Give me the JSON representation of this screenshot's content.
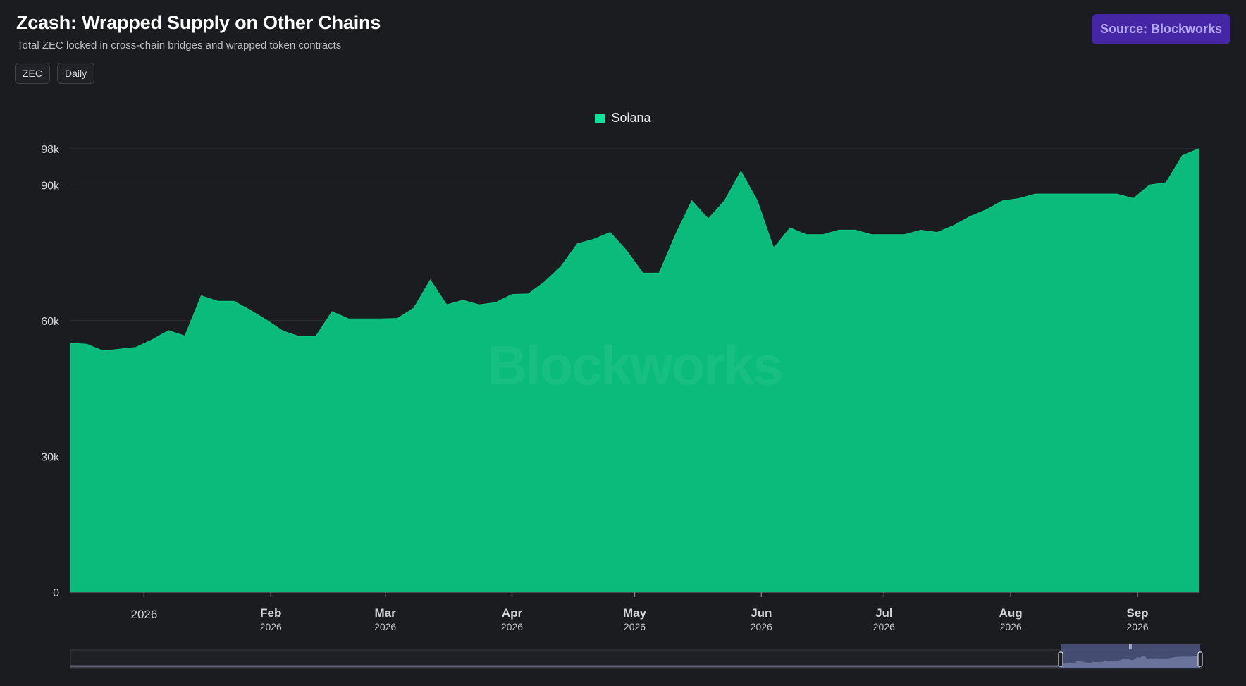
{
  "header": {
    "title": "Zcash: Wrapped Supply on Other Chains",
    "subtitle": "Total ZEC locked in cross-chain bridges and wrapped token contracts",
    "chips": [
      "ZEC",
      "Daily"
    ],
    "source_label": "Source: Blockworks"
  },
  "watermark": "Blockworks",
  "colors": {
    "series": "#0abb7b",
    "legend_swatch": "#0fe39a",
    "background": "#1b1c20",
    "source_button": "#4526a5"
  },
  "chart_data": {
    "type": "area",
    "series": [
      {
        "name": "Solana",
        "x": [
          "2025-12-14",
          "2025-12-18",
          "2025-12-22",
          "2025-12-26",
          "2025-12-30",
          "2026-01-03",
          "2026-01-07",
          "2026-01-11",
          "2026-01-15",
          "2026-01-19",
          "2026-01-23",
          "2026-01-27",
          "2026-01-31",
          "2026-02-04",
          "2026-02-08",
          "2026-02-12",
          "2026-02-16",
          "2026-02-20",
          "2026-02-24",
          "2026-02-28",
          "2026-03-04",
          "2026-03-08",
          "2026-03-12",
          "2026-03-16",
          "2026-03-20",
          "2026-03-24",
          "2026-03-28",
          "2026-04-01",
          "2026-04-05",
          "2026-04-09",
          "2026-04-13",
          "2026-04-17",
          "2026-04-21",
          "2026-04-25",
          "2026-04-29",
          "2026-05-03",
          "2026-05-07",
          "2026-05-11",
          "2026-05-15",
          "2026-05-19",
          "2026-05-23",
          "2026-05-27",
          "2026-05-31",
          "2026-06-04",
          "2026-06-08",
          "2026-06-12",
          "2026-06-16",
          "2026-06-20",
          "2026-06-24",
          "2026-06-28",
          "2026-07-02",
          "2026-07-06",
          "2026-07-10",
          "2026-07-14",
          "2026-07-18",
          "2026-07-22",
          "2026-07-26",
          "2026-07-30",
          "2026-08-03",
          "2026-08-07",
          "2026-08-11",
          "2026-08-15",
          "2026-08-19",
          "2026-08-23",
          "2026-08-27",
          "2026-08-31",
          "2026-09-04",
          "2026-09-08",
          "2026-09-12",
          "2026-09-16"
        ],
        "values": [
          55000,
          54800,
          53300,
          53700,
          54100,
          55800,
          57800,
          56600,
          65500,
          64300,
          64300,
          62300,
          60100,
          57700,
          56500,
          56500,
          62000,
          60400,
          60400,
          60400,
          60500,
          62800,
          69000,
          63500,
          64500,
          63500,
          64000,
          65800,
          65900,
          68600,
          72000,
          77000,
          78000,
          79500,
          75500,
          70500,
          70500,
          79000,
          86500,
          82500,
          86500,
          93000,
          86500,
          76000,
          80500,
          79000,
          79000,
          80000,
          80000,
          79000,
          79000,
          79000,
          80000,
          79500,
          81000,
          83000,
          84500,
          86500,
          87000,
          88000,
          88000,
          88000,
          88000,
          88000,
          88000,
          87000,
          90000,
          90500,
          96500,
          98000
        ]
      }
    ],
    "legend": [
      "Solana"
    ],
    "legend_position": "top-center",
    "ylim": [
      0,
      98000
    ],
    "y_ticks": [
      0,
      30000,
      60000,
      90000,
      98000
    ],
    "y_tick_labels": [
      "0",
      "30k",
      "60k",
      "90k",
      "98k"
    ],
    "x_ticks": [
      {
        "date": "2026-01-01",
        "label": "2026",
        "year": ""
      },
      {
        "date": "2026-02-01",
        "label": "Feb",
        "year": "2026"
      },
      {
        "date": "2026-03-01",
        "label": "Mar",
        "year": "2026"
      },
      {
        "date": "2026-04-01",
        "label": "Apr",
        "year": "2026"
      },
      {
        "date": "2026-05-01",
        "label": "May",
        "year": "2026"
      },
      {
        "date": "2026-06-01",
        "label": "Jun",
        "year": "2026"
      },
      {
        "date": "2026-07-01",
        "label": "Jul",
        "year": "2026"
      },
      {
        "date": "2026-08-01",
        "label": "Aug",
        "year": "2026"
      },
      {
        "date": "2026-09-01",
        "label": "Sep",
        "year": "2026"
      }
    ],
    "grid": true,
    "title": "",
    "xlabel": "",
    "ylabel": ""
  },
  "navigator": {
    "handle_glyph": "⦀"
  }
}
